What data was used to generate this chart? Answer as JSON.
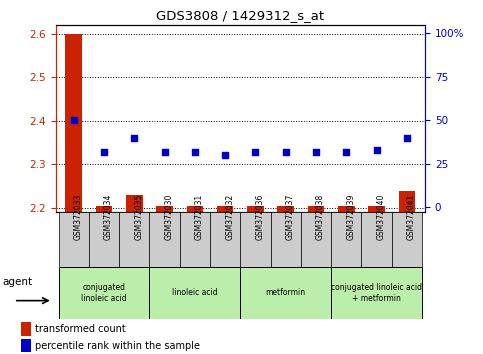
{
  "title": "GDS3808 / 1429312_s_at",
  "samples": [
    "GSM372033",
    "GSM372034",
    "GSM372035",
    "GSM372030",
    "GSM372031",
    "GSM372032",
    "GSM372036",
    "GSM372037",
    "GSM372038",
    "GSM372039",
    "GSM372040",
    "GSM372041"
  ],
  "transformed_count": [
    2.6,
    2.205,
    2.23,
    2.205,
    2.205,
    2.205,
    2.205,
    2.205,
    2.205,
    2.205,
    2.205,
    2.24
  ],
  "percentile_rank": [
    50,
    32,
    40,
    32,
    32,
    30,
    32,
    32,
    32,
    32,
    33,
    40
  ],
  "ylim_left": [
    2.19,
    2.62
  ],
  "ylim_right": [
    -3,
    105
  ],
  "yticks_left": [
    2.2,
    2.3,
    2.4,
    2.5,
    2.6
  ],
  "yticks_right": [
    0,
    25,
    50,
    75,
    100
  ],
  "ytick_labels_right": [
    "0",
    "25",
    "50",
    "75",
    "100%"
  ],
  "bar_color": "#cc2200",
  "dot_color": "#0000cc",
  "grid_color": "#000000",
  "agent_groups": [
    {
      "label": "conjugated\nlinoleic acid",
      "start": 0,
      "end": 3,
      "color": "#bbeeaa"
    },
    {
      "label": "linoleic acid",
      "start": 3,
      "end": 6,
      "color": "#bbeeaa"
    },
    {
      "label": "metformin",
      "start": 6,
      "end": 9,
      "color": "#bbeeaa"
    },
    {
      "label": "conjugated linoleic acid\n+ metformin",
      "start": 9,
      "end": 12,
      "color": "#bbeeaa"
    }
  ],
  "legend_items": [
    {
      "label": "transformed count",
      "color": "#cc2200"
    },
    {
      "label": "percentile rank within the sample",
      "color": "#0000cc"
    }
  ],
  "bar_width": 0.55,
  "dot_size": 22,
  "background_color": "#ffffff"
}
